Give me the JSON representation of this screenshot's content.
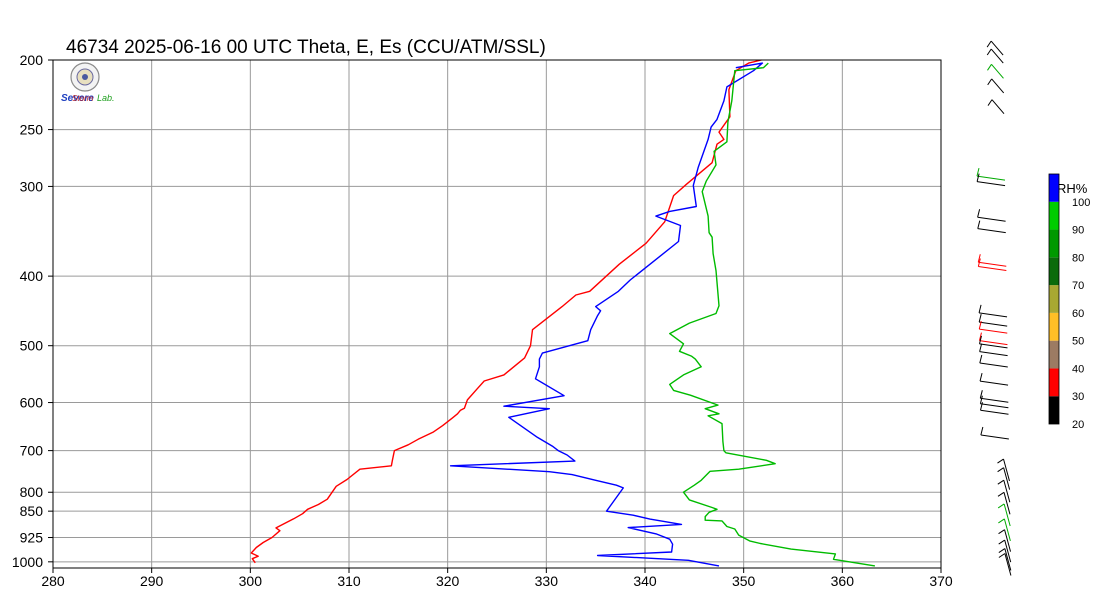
{
  "header": {
    "title": "46734  2025-06-16 00 UTC  Theta, E, Es (CCU/ATM/SSL)",
    "logo_text_1": "Severe",
    "logo_text_2": "Storm",
    "logo_text_3": "Lab."
  },
  "chart_data": {
    "type": "line",
    "title": "46734  2025-06-16 00 UTC  Theta, E, Es (CCU/ATM/SSL)",
    "xlabel": "",
    "ylabel": "",
    "xlim": [
      280,
      370
    ],
    "x_ticks": [
      280,
      290,
      300,
      310,
      320,
      330,
      340,
      350,
      360,
      370
    ],
    "y_scale": "log-pressure",
    "ylim": [
      1020,
      200
    ],
    "y_ticks": [
      200,
      250,
      300,
      400,
      500,
      600,
      700,
      800,
      850,
      925,
      1000
    ],
    "grid": true,
    "series": [
      {
        "color": "#ff0000",
        "points": [
          [
            300.5,
            1003
          ],
          [
            300.2,
            990
          ],
          [
            300.8,
            982
          ],
          [
            300.1,
            972
          ],
          [
            300.6,
            955
          ],
          [
            301.3,
            940
          ],
          [
            302.2,
            925
          ],
          [
            303,
            905
          ],
          [
            302.6,
            897
          ],
          [
            304.4,
            871
          ],
          [
            305.3,
            857
          ],
          [
            305.8,
            845
          ],
          [
            306.9,
            832
          ],
          [
            307.8,
            818
          ],
          [
            308.7,
            785
          ],
          [
            309.8,
            768
          ],
          [
            311.1,
            743
          ],
          [
            314.3,
            735
          ],
          [
            314.4,
            722
          ],
          [
            314.6,
            700
          ],
          [
            316,
            687
          ],
          [
            317,
            675
          ],
          [
            318.5,
            660
          ],
          [
            319.5,
            646
          ],
          [
            320.5,
            630
          ],
          [
            321,
            622
          ],
          [
            321.3,
            615
          ],
          [
            321.7,
            611
          ],
          [
            322,
            595
          ],
          [
            323,
            574
          ],
          [
            323.7,
            560
          ],
          [
            325.7,
            549
          ],
          [
            327.8,
            520
          ],
          [
            328.4,
            500
          ],
          [
            328.6,
            475
          ],
          [
            331.6,
            441
          ],
          [
            333,
            425
          ],
          [
            334.4,
            420
          ],
          [
            337.4,
            385
          ],
          [
            340.1,
            360
          ],
          [
            342,
            336
          ],
          [
            342.9,
            309
          ],
          [
            344.2,
            298
          ],
          [
            346.8,
            278
          ],
          [
            347.3,
            262
          ],
          [
            348,
            258
          ],
          [
            347.5,
            252
          ],
          [
            348.6,
            240
          ],
          [
            348.5,
            220
          ],
          [
            349.2,
            207
          ],
          [
            350.5,
            202
          ],
          [
            351.8,
            200
          ]
        ]
      },
      {
        "color": "#0000ff",
        "points": [
          [
            347.5,
            1013
          ],
          [
            344.4,
            995
          ],
          [
            335.2,
            980
          ],
          [
            342.7,
            969
          ],
          [
            342.8,
            945
          ],
          [
            342.5,
            930
          ],
          [
            341.2,
            915
          ],
          [
            338.3,
            896
          ],
          [
            343.7,
            887
          ],
          [
            340.5,
            872
          ],
          [
            338.8,
            861
          ],
          [
            336.1,
            850
          ],
          [
            337.8,
            789
          ],
          [
            337.1,
            782
          ],
          [
            335,
            770
          ],
          [
            332.6,
            756
          ],
          [
            330.3,
            749
          ],
          [
            320.3,
            735
          ],
          [
            332.9,
            724
          ],
          [
            332.1,
            710
          ],
          [
            331.2,
            700
          ],
          [
            330.6,
            690
          ],
          [
            329.1,
            671
          ],
          [
            326.2,
            629
          ],
          [
            330.3,
            612
          ],
          [
            325.7,
            607
          ],
          [
            331.8,
            587
          ],
          [
            328.9,
            556
          ],
          [
            329.3,
            535
          ],
          [
            329.3,
            522
          ],
          [
            329.6,
            512
          ],
          [
            334.2,
            492
          ],
          [
            334.5,
            475
          ],
          [
            335.2,
            454
          ],
          [
            335.5,
            447
          ],
          [
            335,
            441
          ],
          [
            337.3,
            420
          ],
          [
            338.5,
            405
          ],
          [
            343.4,
            358
          ],
          [
            343.6,
            340
          ],
          [
            341.1,
            330
          ],
          [
            342.5,
            325
          ],
          [
            345.2,
            320
          ],
          [
            344.9,
            299
          ],
          [
            345.4,
            282
          ],
          [
            346.4,
            258
          ],
          [
            346.7,
            248
          ],
          [
            347.3,
            242
          ],
          [
            348,
            228
          ],
          [
            348.3,
            218
          ],
          [
            351,
            207
          ],
          [
            351.9,
            202
          ],
          [
            349.2,
            205
          ]
        ]
      },
      {
        "color": "#00bb00",
        "points": [
          [
            363.3,
            1013
          ],
          [
            359.1,
            992
          ],
          [
            359.3,
            975
          ],
          [
            354.8,
            960
          ],
          [
            351.7,
            943
          ],
          [
            350.6,
            935
          ],
          [
            349.5,
            918
          ],
          [
            349.1,
            900
          ],
          [
            348.3,
            893
          ],
          [
            347.8,
            877
          ],
          [
            346.1,
            875
          ],
          [
            346.1,
            865
          ],
          [
            346.5,
            853
          ],
          [
            347.3,
            845
          ],
          [
            346.8,
            840
          ],
          [
            344.5,
            820
          ],
          [
            343.9,
            800
          ],
          [
            345,
            782
          ],
          [
            345.7,
            770
          ],
          [
            346.6,
            748
          ],
          [
            349.5,
            743
          ],
          [
            353.2,
            730
          ],
          [
            352.3,
            722
          ],
          [
            348.2,
            705
          ],
          [
            348,
            700
          ],
          [
            347.9,
            680
          ],
          [
            347.8,
            642
          ],
          [
            346.4,
            626
          ],
          [
            347.5,
            622
          ],
          [
            346.1,
            612
          ],
          [
            347.4,
            605
          ],
          [
            344.6,
            586
          ],
          [
            342.9,
            577
          ],
          [
            342.5,
            566
          ],
          [
            343.9,
            549
          ],
          [
            345.7,
            535
          ],
          [
            345.1,
            522
          ],
          [
            344.7,
            517
          ],
          [
            343.5,
            509
          ],
          [
            343.9,
            497
          ],
          [
            342.5,
            481
          ],
          [
            344.5,
            465
          ],
          [
            347.2,
            451
          ],
          [
            347.5,
            440
          ],
          [
            347.2,
            393
          ],
          [
            346.9,
            372
          ],
          [
            346.8,
            353
          ],
          [
            346.5,
            348
          ],
          [
            346.4,
            330
          ],
          [
            345.8,
            305
          ],
          [
            346.2,
            295
          ],
          [
            347.2,
            280
          ],
          [
            347,
            268
          ],
          [
            348.3,
            260
          ],
          [
            348.4,
            244
          ],
          [
            348.8,
            228
          ],
          [
            349.1,
            207
          ],
          [
            352,
            205
          ],
          [
            352.5,
            202
          ]
        ]
      }
    ],
    "colorbar": {
      "label": "RH%",
      "ticks": [
        20,
        30,
        40,
        50,
        60,
        70,
        80,
        90,
        100
      ],
      "colors": [
        "#000000",
        "#ff0000",
        "#9c7b63",
        "#ffbf26",
        "#a8a832",
        "#0b6b0b",
        "#009900",
        "#00cc00",
        "#0000ff"
      ]
    },
    "wind_profile": {
      "barb_pressures": [
        205,
        210,
        220,
        230,
        245,
        300,
        305,
        340,
        352,
        390,
        395,
        455,
        468,
        478,
        495,
        500,
        512,
        530,
        560,
        590,
        600,
        612,
        660,
        750,
        770,
        800,
        830,
        860,
        900,
        930,
        960,
        985,
        1000
      ],
      "barb_colors": [
        "black",
        "black",
        "green",
        "black",
        "black",
        "green",
        "black",
        "black",
        "black",
        "red",
        "red",
        "black",
        "black",
        "red",
        "red",
        "black",
        "black",
        "black",
        "black",
        "black",
        "black",
        "black",
        "black",
        "black",
        "black",
        "black",
        "black",
        "green",
        "green",
        "black",
        "black",
        "black",
        "black"
      ]
    }
  }
}
